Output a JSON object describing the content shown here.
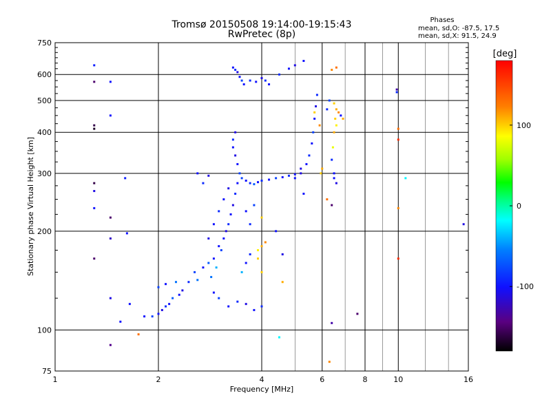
{
  "chart_data": {
    "type": "scatter",
    "title": "Tromsø 20150508 19:14:00-19:15:43",
    "subtitle": "RwPretec (8p)",
    "xlabel": "Frequency [MHz]",
    "ylabel": "Stationary phase Virtual Height [km]",
    "x_scale": "log2",
    "y_scale": "log",
    "xlim": [
      1,
      16
    ],
    "ylim": [
      75,
      750
    ],
    "x_ticks": [
      1,
      2,
      4,
      6,
      8,
      10,
      16
    ],
    "x_tick_labels": [
      "1",
      "2",
      "4",
      "6",
      "8",
      "10",
      "16"
    ],
    "x_minor_ticks": [
      5,
      7,
      9,
      12,
      14
    ],
    "y_ticks": [
      75,
      100,
      200,
      300,
      400,
      500,
      600,
      750
    ],
    "y_tick_labels": [
      "75",
      "100",
      "200",
      "300",
      "400",
      "500",
      "600",
      "750"
    ],
    "grid": true,
    "phase_legend": {
      "title": "Phases",
      "line1": "mean, sd,O: -87.5, 17.5",
      "line2": "mean, sd,X:  91.5, 24.9"
    },
    "colorbar": {
      "label": "[deg]",
      "range": [
        -180,
        180
      ],
      "ticks": [
        100,
        0,
        -100
      ],
      "tick_labels": [
        "100",
        "0",
        "-100"
      ]
    },
    "points": [
      [
        1.3,
        640,
        -95
      ],
      [
        1.3,
        570,
        -150
      ],
      [
        1.3,
        420,
        -160
      ],
      [
        1.3,
        410,
        -170
      ],
      [
        1.3,
        280,
        -160
      ],
      [
        1.3,
        265,
        -110
      ],
      [
        1.3,
        235,
        -100
      ],
      [
        1.3,
        165,
        -150
      ],
      [
        1.45,
        570,
        -100
      ],
      [
        1.45,
        450,
        -100
      ],
      [
        1.45,
        220,
        -150
      ],
      [
        1.45,
        190,
        -120
      ],
      [
        1.45,
        125,
        -110
      ],
      [
        1.45,
        90,
        -140
      ],
      [
        1.6,
        290,
        -95
      ],
      [
        1.62,
        197,
        -100
      ],
      [
        1.65,
        120,
        -100
      ],
      [
        1.55,
        106,
        -100
      ],
      [
        1.75,
        97,
        130
      ],
      [
        1.82,
        110,
        -100
      ],
      [
        1.92,
        110,
        -80
      ],
      [
        2.0,
        112,
        -100
      ],
      [
        2.05,
        115,
        -110
      ],
      [
        2.1,
        118,
        -90
      ],
      [
        2.15,
        120,
        -100
      ],
      [
        2.2,
        125,
        -70
      ],
      [
        2.3,
        128,
        -100
      ],
      [
        2.0,
        135,
        -80
      ],
      [
        2.1,
        138,
        -100
      ],
      [
        2.25,
        140,
        -60
      ],
      [
        2.35,
        132,
        -110
      ],
      [
        2.45,
        140,
        -90
      ],
      [
        2.55,
        150,
        -80
      ],
      [
        2.6,
        142,
        -60
      ],
      [
        2.7,
        155,
        -100
      ],
      [
        2.8,
        160,
        -70
      ],
      [
        2.9,
        165,
        -100
      ],
      [
        2.85,
        145,
        -60
      ],
      [
        2.95,
        155,
        -40
      ],
      [
        3.0,
        180,
        -100
      ],
      [
        3.05,
        175,
        -80
      ],
      [
        3.1,
        190,
        -100
      ],
      [
        3.15,
        200,
        -110
      ],
      [
        3.2,
        210,
        -90
      ],
      [
        3.25,
        225,
        -100
      ],
      [
        3.3,
        240,
        -110
      ],
      [
        3.35,
        260,
        -90
      ],
      [
        3.4,
        280,
        -100
      ],
      [
        3.45,
        300,
        -80
      ],
      [
        3.4,
        320,
        -100
      ],
      [
        3.35,
        340,
        -110
      ],
      [
        3.3,
        360,
        -100
      ],
      [
        3.3,
        380,
        -90
      ],
      [
        3.35,
        400,
        -110
      ],
      [
        3.5,
        290,
        -80
      ],
      [
        3.6,
        285,
        -100
      ],
      [
        3.7,
        280,
        -90
      ],
      [
        3.8,
        278,
        -70
      ],
      [
        3.9,
        282,
        -100
      ],
      [
        4.0,
        285,
        -90
      ],
      [
        4.2,
        287,
        -100
      ],
      [
        4.4,
        290,
        -80
      ],
      [
        4.6,
        292,
        -100
      ],
      [
        4.8,
        295,
        -90
      ],
      [
        5.0,
        298,
        -100
      ],
      [
        5.2,
        300,
        -110
      ],
      [
        5.4,
        320,
        -100
      ],
      [
        5.5,
        340,
        -90
      ],
      [
        5.6,
        370,
        -100
      ],
      [
        5.65,
        400,
        -80
      ],
      [
        5.7,
        440,
        -100
      ],
      [
        5.75,
        480,
        -110
      ],
      [
        5.8,
        520,
        -90
      ],
      [
        5.7,
        460,
        100
      ],
      [
        5.9,
        420,
        120
      ],
      [
        5.95,
        300,
        100
      ],
      [
        6.0,
        310,
        110
      ],
      [
        6.5,
        490,
        100
      ],
      [
        6.6,
        470,
        110
      ],
      [
        6.7,
        460,
        120
      ],
      [
        6.55,
        440,
        100
      ],
      [
        6.6,
        420,
        90
      ],
      [
        6.5,
        400,
        110
      ],
      [
        6.45,
        360,
        80
      ],
      [
        6.4,
        330,
        -90
      ],
      [
        6.5,
        300,
        -100
      ],
      [
        6.3,
        500,
        -80
      ],
      [
        6.2,
        470,
        -90
      ],
      [
        6.5,
        290,
        -100
      ],
      [
        6.6,
        280,
        -110
      ],
      [
        6.8,
        450,
        -100
      ],
      [
        6.9,
        440,
        110
      ],
      [
        6.4,
        240,
        -150
      ],
      [
        6.2,
        250,
        130
      ],
      [
        6.6,
        630,
        130
      ],
      [
        6.4,
        620,
        120
      ],
      [
        3.3,
        630,
        -100
      ],
      [
        3.35,
        620,
        -90
      ],
      [
        3.4,
        610,
        -110
      ],
      [
        3.45,
        590,
        -100
      ],
      [
        3.5,
        575,
        -80
      ],
      [
        3.55,
        560,
        -100
      ],
      [
        3.7,
        575,
        -90
      ],
      [
        3.85,
        570,
        -100
      ],
      [
        4.0,
        585,
        -110
      ],
      [
        4.1,
        575,
        -90
      ],
      [
        4.2,
        560,
        -100
      ],
      [
        4.5,
        600,
        -90
      ],
      [
        4.8,
        625,
        -100
      ],
      [
        5.0,
        640,
        -110
      ],
      [
        5.3,
        660,
        -100
      ],
      [
        2.9,
        130,
        -100
      ],
      [
        3.0,
        125,
        -80
      ],
      [
        3.2,
        118,
        -100
      ],
      [
        3.4,
        122,
        -90
      ],
      [
        3.6,
        120,
        -110
      ],
      [
        3.8,
        115,
        -100
      ],
      [
        4.0,
        118,
        -90
      ],
      [
        3.5,
        150,
        -40
      ],
      [
        3.6,
        160,
        -100
      ],
      [
        3.7,
        170,
        -90
      ],
      [
        3.9,
        165,
        100
      ],
      [
        4.0,
        180,
        110
      ],
      [
        4.1,
        185,
        120
      ],
      [
        3.9,
        175,
        90
      ],
      [
        4.0,
        150,
        100
      ],
      [
        4.6,
        140,
        110
      ],
      [
        5.0,
        290,
        -100
      ],
      [
        5.2,
        310,
        -110
      ],
      [
        2.8,
        190,
        -110
      ],
      [
        2.9,
        210,
        -100
      ],
      [
        3.0,
        230,
        -90
      ],
      [
        3.1,
        250,
        -100
      ],
      [
        3.2,
        270,
        -110
      ],
      [
        3.6,
        230,
        -100
      ],
      [
        3.8,
        240,
        -80
      ],
      [
        3.7,
        210,
        -90
      ],
      [
        4.0,
        220,
        100
      ],
      [
        4.4,
        200,
        -100
      ],
      [
        4.6,
        170,
        -110
      ],
      [
        5.3,
        260,
        -100
      ],
      [
        6.4,
        105,
        -130
      ],
      [
        7.6,
        112,
        -150
      ],
      [
        9.9,
        540,
        -130
      ],
      [
        9.9,
        530,
        -90
      ],
      [
        10.0,
        410,
        130
      ],
      [
        10.0,
        380,
        160
      ],
      [
        10.0,
        235,
        120
      ],
      [
        10.0,
        165,
        160
      ],
      [
        10.5,
        290,
        -20
      ],
      [
        15.5,
        210,
        -110
      ],
      [
        6.3,
        80,
        120
      ],
      [
        4.5,
        95,
        -20
      ],
      [
        2.6,
        300,
        -100
      ],
      [
        2.8,
        295,
        -110
      ],
      [
        2.7,
        280,
        -90
      ]
    ]
  }
}
